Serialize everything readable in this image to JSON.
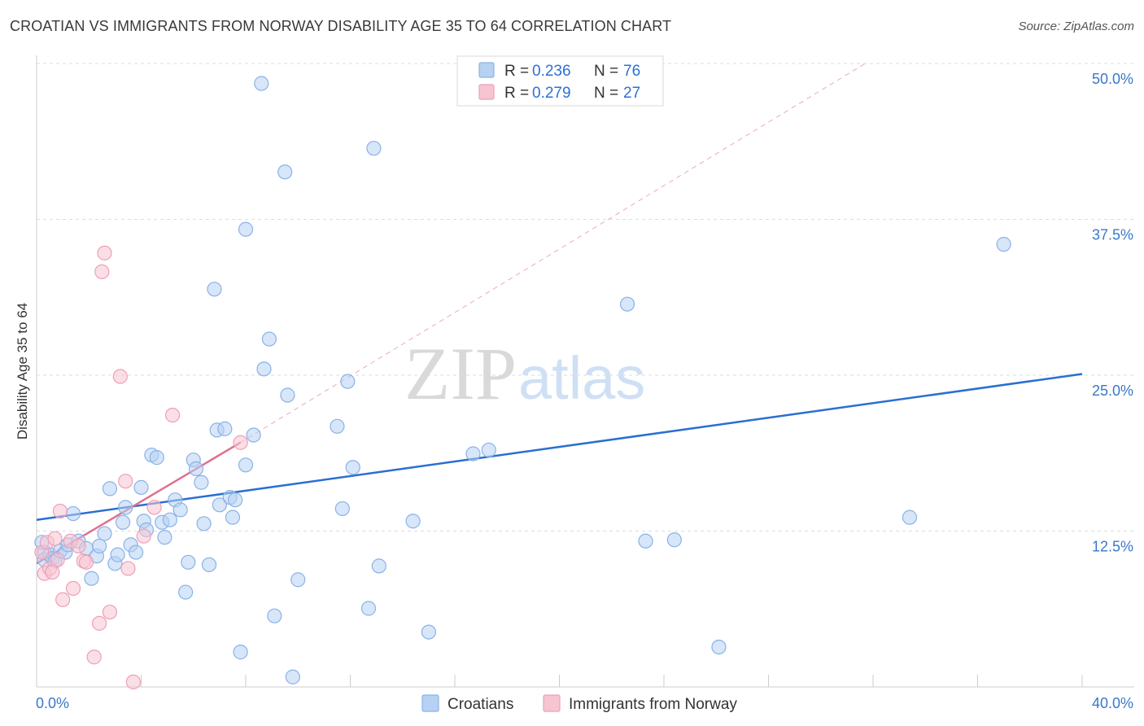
{
  "title": "CROATIAN VS IMMIGRANTS FROM NORWAY DISABILITY AGE 35 TO 64 CORRELATION CHART",
  "source": "Source: ZipAtlas.com",
  "watermark": {
    "part1": "ZIP",
    "part2": "atlas"
  },
  "colors": {
    "blue_fill": "#b7d1f3",
    "blue_stroke": "#8ab2e8",
    "blue_line": "#2a6fd1",
    "pink_fill": "#f7c5d2",
    "pink_stroke": "#ee9fb5",
    "pink_line": "#e0708f",
    "axis_text": "#3a78c9",
    "grid": "#dddddd"
  },
  "chart_data": {
    "type": "scatter",
    "ylabel": "Disability Age 35 to 64",
    "xlim": [
      0,
      40
    ],
    "ylim": [
      0,
      50
    ],
    "x_tick_labels": [
      {
        "value": 0,
        "label": "0.0%"
      },
      {
        "value": 40,
        "label": "40.0%"
      }
    ],
    "y_tick_labels": [
      {
        "value": 12.5,
        "label": "12.5%"
      },
      {
        "value": 25,
        "label": "25.0%"
      },
      {
        "value": 37.5,
        "label": "37.5%"
      },
      {
        "value": 50,
        "label": "50.0%"
      }
    ],
    "legend": {
      "position": "top-center",
      "entries": [
        {
          "r_label": "R =",
          "r": "0.236",
          "n_label": "N =",
          "n": "76",
          "color": "blue"
        },
        {
          "r_label": "R =",
          "r": "0.279",
          "n_label": "N =",
          "n": "27",
          "color": "pink"
        }
      ]
    },
    "series": [
      {
        "name": "Croatians",
        "color": "blue",
        "trend": {
          "x": [
            0,
            40
          ],
          "y": [
            13.4,
            25.1
          ]
        },
        "points": [
          [
            0.3,
            10.8
          ],
          [
            0.3,
            10.2
          ],
          [
            0.5,
            10.6
          ],
          [
            0.6,
            10.3
          ],
          [
            0.7,
            10.1
          ],
          [
            0.9,
            10.9
          ],
          [
            1.1,
            10.8
          ],
          [
            1.2,
            11.4
          ],
          [
            1.4,
            13.9
          ],
          [
            1.6,
            11.7
          ],
          [
            1.9,
            11.1
          ],
          [
            2.1,
            8.7
          ],
          [
            2.3,
            10.5
          ],
          [
            2.4,
            11.3
          ],
          [
            2.6,
            12.3
          ],
          [
            2.8,
            15.9
          ],
          [
            3.0,
            9.9
          ],
          [
            3.1,
            10.6
          ],
          [
            3.3,
            13.2
          ],
          [
            3.4,
            14.4
          ],
          [
            3.6,
            11.4
          ],
          [
            3.8,
            10.8
          ],
          [
            4.0,
            16.0
          ],
          [
            4.1,
            13.3
          ],
          [
            4.2,
            12.6
          ],
          [
            4.4,
            18.6
          ],
          [
            4.6,
            18.4
          ],
          [
            4.8,
            13.2
          ],
          [
            4.9,
            12.0
          ],
          [
            5.1,
            13.4
          ],
          [
            5.3,
            15.0
          ],
          [
            5.5,
            14.2
          ],
          [
            5.7,
            7.6
          ],
          [
            5.8,
            10.0
          ],
          [
            6.0,
            18.2
          ],
          [
            6.1,
            17.5
          ],
          [
            6.3,
            16.4
          ],
          [
            6.4,
            13.1
          ],
          [
            6.6,
            9.8
          ],
          [
            6.8,
            31.9
          ],
          [
            6.9,
            20.6
          ],
          [
            7.0,
            14.6
          ],
          [
            7.2,
            20.7
          ],
          [
            7.4,
            15.2
          ],
          [
            7.5,
            13.6
          ],
          [
            7.6,
            15.0
          ],
          [
            7.8,
            2.8
          ],
          [
            8.0,
            17.8
          ],
          [
            8.0,
            36.7
          ],
          [
            8.3,
            20.2
          ],
          [
            8.6,
            48.4
          ],
          [
            8.7,
            25.5
          ],
          [
            8.9,
            27.9
          ],
          [
            9.1,
            5.7
          ],
          [
            9.5,
            41.3
          ],
          [
            9.6,
            23.4
          ],
          [
            9.8,
            0.8
          ],
          [
            10.0,
            8.6
          ],
          [
            11.5,
            20.9
          ],
          [
            11.7,
            14.3
          ],
          [
            11.9,
            24.5
          ],
          [
            12.1,
            17.6
          ],
          [
            12.7,
            6.3
          ],
          [
            12.9,
            43.2
          ],
          [
            13.1,
            9.7
          ],
          [
            14.4,
            13.3
          ],
          [
            15.0,
            4.4
          ],
          [
            16.7,
            18.7
          ],
          [
            17.3,
            19.0
          ],
          [
            22.6,
            30.7
          ],
          [
            23.3,
            11.7
          ],
          [
            24.4,
            11.8
          ],
          [
            26.1,
            3.2
          ],
          [
            33.4,
            13.6
          ],
          [
            37.0,
            35.5
          ],
          [
            0.2,
            11.6
          ]
        ]
      },
      {
        "name": "Immigrants from Norway",
        "color": "pink",
        "trend": {
          "x": [
            0,
            7.8
          ],
          "y": [
            9.9,
            19.6
          ]
        },
        "extension": {
          "x": [
            7.8,
            31.7
          ],
          "y": [
            19.6,
            50.0
          ]
        },
        "points": [
          [
            0.2,
            10.8
          ],
          [
            0.3,
            9.1
          ],
          [
            0.4,
            11.6
          ],
          [
            0.5,
            9.5
          ],
          [
            0.6,
            9.2
          ],
          [
            0.7,
            11.9
          ],
          [
            0.8,
            10.2
          ],
          [
            0.9,
            14.1
          ],
          [
            1.0,
            7.0
          ],
          [
            1.3,
            11.7
          ],
          [
            1.4,
            7.9
          ],
          [
            1.6,
            11.3
          ],
          [
            1.8,
            10.1
          ],
          [
            1.9,
            10.0
          ],
          [
            2.2,
            2.4
          ],
          [
            2.4,
            5.1
          ],
          [
            2.5,
            33.3
          ],
          [
            2.6,
            34.8
          ],
          [
            2.8,
            6.0
          ],
          [
            3.2,
            24.9
          ],
          [
            3.4,
            16.5
          ],
          [
            3.5,
            9.5
          ],
          [
            3.7,
            0.4
          ],
          [
            4.1,
            12.1
          ],
          [
            4.5,
            14.4
          ],
          [
            5.2,
            21.8
          ],
          [
            7.8,
            19.6
          ]
        ]
      }
    ]
  }
}
